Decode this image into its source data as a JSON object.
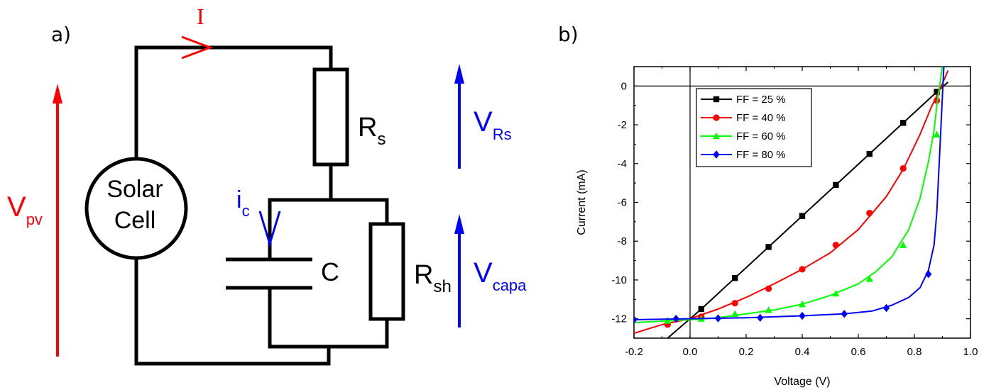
{
  "panel_a": {
    "label": "a)",
    "current_label": "I",
    "source_label_line1": "Solar",
    "source_label_line2": "Cell",
    "rs_label": "R",
    "rs_sub": "s",
    "rsh_label": "R",
    "rsh_sub": "sh",
    "cap_label": "C",
    "ic_label": "i",
    "ic_sub": "c",
    "vpv_label": "V",
    "vpv_sub": "pv",
    "vrs_label": "V",
    "vrs_sub": "Rs",
    "vcapa_label": "V",
    "vcapa_sub": "capa",
    "colors": {
      "wire": "#000000",
      "red": "#ff0000",
      "blue": "#0000ff"
    }
  },
  "panel_b": {
    "label": "b)"
  },
  "chart_data": {
    "type": "line",
    "xlabel": "Voltage (V)",
    "ylabel": "Current (mA)",
    "xlim": [
      -0.2,
      1.0
    ],
    "ylim": [
      -13,
      1
    ],
    "xticks": [
      -0.2,
      0.0,
      0.2,
      0.4,
      0.6,
      0.8,
      1.0
    ],
    "xtick_labels": [
      "-0.2",
      "0.0",
      "0.2",
      "0.4",
      "0.6",
      "0.8",
      "1.0"
    ],
    "yticks": [
      0,
      -2,
      -4,
      -6,
      -8,
      -10,
      -12
    ],
    "ytick_labels": [
      "0",
      "-2",
      "-4",
      "-6",
      "-8",
      "-10",
      "-12"
    ],
    "grid": false,
    "legend_position": "top-left",
    "series": [
      {
        "name": "FF = 25 %",
        "color": "#000000",
        "marker": "square",
        "x": [
          -0.08,
          0.04,
          0.16,
          0.28,
          0.4,
          0.52,
          0.64,
          0.76,
          0.88,
          0.92
        ],
        "y": [
          -13.0,
          -11.5,
          -9.9,
          -8.3,
          -6.7,
          -5.1,
          -3.5,
          -1.9,
          -0.3,
          0.2
        ],
        "markers": [
          [
            0.04,
            -11.5
          ],
          [
            0.16,
            -9.9
          ],
          [
            0.28,
            -8.3
          ],
          [
            0.4,
            -6.7
          ],
          [
            0.52,
            -5.1
          ],
          [
            0.64,
            -3.5
          ],
          [
            0.76,
            -1.9
          ],
          [
            0.88,
            -0.3
          ]
        ]
      },
      {
        "name": "FF = 40 %",
        "color": "#ff0000",
        "marker": "circle",
        "x": [
          -0.2,
          -0.1,
          0.0,
          0.1,
          0.2,
          0.3,
          0.4,
          0.5,
          0.6,
          0.7,
          0.76,
          0.82,
          0.86,
          0.89,
          0.92
        ],
        "y": [
          -12.75,
          -12.3,
          -12.0,
          -11.5,
          -10.9,
          -10.2,
          -9.45,
          -8.6,
          -7.4,
          -5.7,
          -4.3,
          -2.5,
          -1.1,
          -0.2,
          0.8
        ],
        "markers": [
          [
            -0.08,
            -12.3
          ],
          [
            0.04,
            -11.9
          ],
          [
            0.16,
            -11.2
          ],
          [
            0.28,
            -10.45
          ],
          [
            0.4,
            -9.45
          ],
          [
            0.52,
            -8.2
          ],
          [
            0.64,
            -6.55
          ],
          [
            0.76,
            -4.25
          ],
          [
            0.88,
            -0.75
          ]
        ]
      },
      {
        "name": "FF = 60 %",
        "color": "#00ff00",
        "marker": "triangle",
        "x": [
          -0.2,
          0.0,
          0.1,
          0.2,
          0.3,
          0.4,
          0.5,
          0.6,
          0.66,
          0.72,
          0.78,
          0.82,
          0.85,
          0.87,
          0.88,
          0.9
        ],
        "y": [
          -12.2,
          -12.05,
          -11.95,
          -11.75,
          -11.55,
          -11.25,
          -10.8,
          -10.2,
          -9.6,
          -8.8,
          -7.4,
          -5.8,
          -3.9,
          -2.3,
          -1.0,
          1.0
        ],
        "markers": [
          [
            -0.08,
            -12.1
          ],
          [
            0.04,
            -12.0
          ],
          [
            0.16,
            -11.75
          ],
          [
            0.28,
            -11.55
          ],
          [
            0.4,
            -11.25
          ],
          [
            0.52,
            -10.7
          ],
          [
            0.64,
            -9.95
          ],
          [
            0.76,
            -8.2
          ],
          [
            0.88,
            -2.5
          ]
        ]
      },
      {
        "name": "FF = 80 %",
        "color": "#0000ff",
        "marker": "diamond",
        "x": [
          -0.2,
          0.0,
          0.2,
          0.4,
          0.55,
          0.65,
          0.72,
          0.78,
          0.82,
          0.85,
          0.87,
          0.88,
          0.89,
          0.9,
          0.905
        ],
        "y": [
          -12.05,
          -12.0,
          -11.95,
          -11.85,
          -11.75,
          -11.6,
          -11.3,
          -10.9,
          -10.4,
          -9.5,
          -8.2,
          -6.5,
          -3.5,
          -0.5,
          1.0
        ],
        "markers": [
          [
            -0.2,
            -12.05
          ],
          [
            -0.05,
            -12.0
          ],
          [
            0.1,
            -11.98
          ],
          [
            0.25,
            -11.95
          ],
          [
            0.4,
            -11.85
          ],
          [
            0.55,
            -11.75
          ],
          [
            0.7,
            -11.45
          ],
          [
            0.85,
            -9.7
          ]
        ]
      }
    ]
  }
}
